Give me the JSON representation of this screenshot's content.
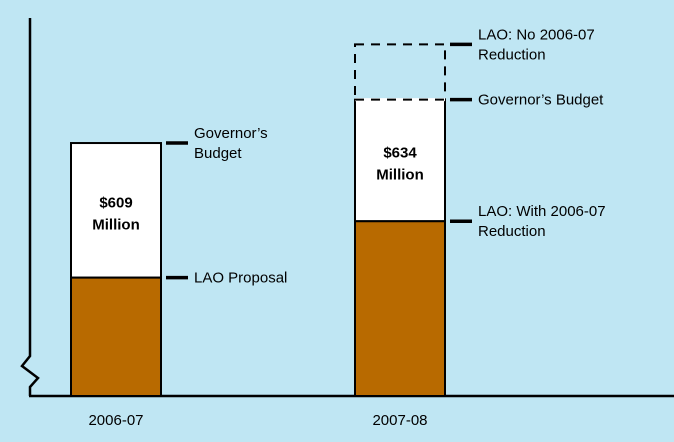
{
  "colors": {
    "background": "#bfe6f3",
    "lao_bar": "#b86a00",
    "gap_box": "#ffffff",
    "lines": "#000000"
  },
  "chart_data": {
    "type": "bar",
    "title": "",
    "xlabel": "",
    "ylabel": "",
    "categories": [
      "2006-07",
      "2007-08"
    ],
    "axis_break": true,
    "grid": false,
    "legend": "none",
    "bars": [
      {
        "category": "2006-07",
        "lao_level": 0.445,
        "governor_level": 0.951,
        "gap_label": [
          "$609",
          "Million"
        ],
        "markers": [
          {
            "role": "governor",
            "lines": [
              "Governor’s",
              "Budget"
            ]
          },
          {
            "role": "lao",
            "lines": [
              "LAO Proposal"
            ]
          }
        ]
      },
      {
        "category": "2007-08",
        "lao_level": 0.657,
        "governor_level": 1.114,
        "dashed_level": 1.322,
        "gap_label": [
          "$634",
          "Million"
        ],
        "markers": [
          {
            "role": "dashed",
            "lines": [
              "LAO: No 2006-07",
              "Reduction"
            ]
          },
          {
            "role": "governor",
            "lines": [
              "Governor’s Budget"
            ]
          },
          {
            "role": "lao",
            "lines": [
              "LAO: With 2006-07",
              "Reduction"
            ]
          }
        ]
      }
    ]
  }
}
